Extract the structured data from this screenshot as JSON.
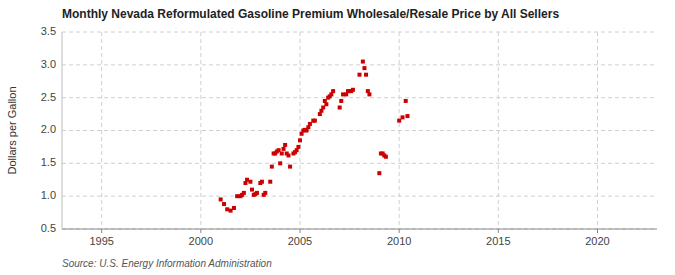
{
  "chart_data": {
    "type": "scatter",
    "title": "Monthly Nevada Reformulated Gasoline Premium Wholesale/Resale Price by All Sellers",
    "ylabel": "Dollars per Gallon",
    "source": "Source: U.S. Energy Information Administration",
    "color": "#cc0000",
    "marker": "square",
    "grid": true,
    "xlim": [
      1993,
      2023
    ],
    "ylim": [
      0.5,
      3.5
    ],
    "xticks": [
      1995,
      2000,
      2005,
      2010,
      2015,
      2020
    ],
    "yticks": [
      0.5,
      {
        "value": 1.0,
        "label": "1.0"
      },
      1.5,
      {
        "value": 2.0,
        "label": "2.0"
      },
      2.5,
      {
        "value": 3.0,
        "label": "3.0"
      },
      3.5
    ],
    "x": [
      2001.0,
      2001.17,
      2001.33,
      2001.5,
      2001.67,
      2001.83,
      2002.0,
      2002.08,
      2002.17,
      2002.25,
      2002.33,
      2002.5,
      2002.58,
      2002.67,
      2002.75,
      2002.83,
      2003.0,
      2003.08,
      2003.17,
      2003.25,
      2003.5,
      2003.58,
      2003.67,
      2003.75,
      2003.83,
      2003.92,
      2004.0,
      2004.08,
      2004.17,
      2004.25,
      2004.33,
      2004.42,
      2004.5,
      2004.67,
      2004.75,
      2004.83,
      2004.92,
      2005.0,
      2005.08,
      2005.17,
      2005.25,
      2005.33,
      2005.42,
      2005.5,
      2005.67,
      2005.75,
      2006.0,
      2006.08,
      2006.17,
      2006.25,
      2006.33,
      2006.42,
      2006.5,
      2006.58,
      2006.67,
      2007.0,
      2007.08,
      2007.17,
      2007.33,
      2007.42,
      2007.5,
      2007.58,
      2007.67,
      2008.0,
      2008.17,
      2008.25,
      2008.33,
      2008.42,
      2008.5,
      2009.0,
      2009.08,
      2009.17,
      2009.25,
      2009.33,
      2010.0,
      2010.17,
      2010.33,
      2010.42
    ],
    "values": [
      0.95,
      0.88,
      0.8,
      0.78,
      0.82,
      1.0,
      1.0,
      1.02,
      1.05,
      1.2,
      1.25,
      1.22,
      1.1,
      1.02,
      1.03,
      1.05,
      1.2,
      1.22,
      1.02,
      1.05,
      1.22,
      1.45,
      1.65,
      1.65,
      1.68,
      1.7,
      1.5,
      1.65,
      1.72,
      1.78,
      1.65,
      1.62,
      1.45,
      1.65,
      1.67,
      1.7,
      1.75,
      1.85,
      1.95,
      2.0,
      2.01,
      2.0,
      2.05,
      2.1,
      2.15,
      2.15,
      2.25,
      2.3,
      2.35,
      2.45,
      2.4,
      2.5,
      2.52,
      2.55,
      2.6,
      2.35,
      2.45,
      2.55,
      2.55,
      2.6,
      2.6,
      2.6,
      2.62,
      2.85,
      3.05,
      2.95,
      2.85,
      2.6,
      2.55,
      1.35,
      1.65,
      1.65,
      1.62,
      1.6,
      2.15,
      2.2,
      2.45,
      2.22
    ]
  }
}
